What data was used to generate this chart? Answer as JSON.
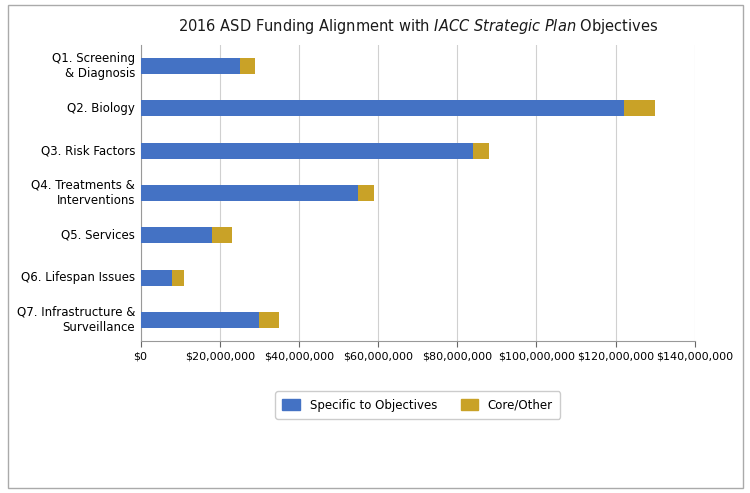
{
  "categories": [
    "Q1. Screening\n& Diagnosis",
    "Q2. Biology",
    "Q3. Risk Factors",
    "Q4. Treatments &\nInterventions",
    "Q5. Services",
    "Q6. Lifespan Issues",
    "Q7. Infrastructure &\nSurveillance"
  ],
  "specific_values": [
    25000000,
    122000000,
    84000000,
    55000000,
    18000000,
    8000000,
    30000000
  ],
  "core_values": [
    4000000,
    8000000,
    4000000,
    4000000,
    5000000,
    3000000,
    5000000
  ],
  "bar_color_specific": "#4472C4",
  "bar_color_core": "#C9A227",
  "plot_bg_color": "#FFFFFF",
  "fig_bg_color": "#FFFFFF",
  "grid_color": "#D0D0D0",
  "legend_labels": [
    "Specific to Objectives",
    "Core/Other"
  ],
  "xlim": [
    0,
    140000000
  ],
  "xticks": [
    0,
    20000000,
    40000000,
    60000000,
    80000000,
    100000000,
    120000000,
    140000000
  ],
  "figsize": [
    7.5,
    4.93
  ],
  "dpi": 100,
  "bar_height": 0.38,
  "title_fontsize": 10.5,
  "tick_fontsize": 8,
  "ylabel_fontsize": 8.5,
  "legend_fontsize": 8.5
}
